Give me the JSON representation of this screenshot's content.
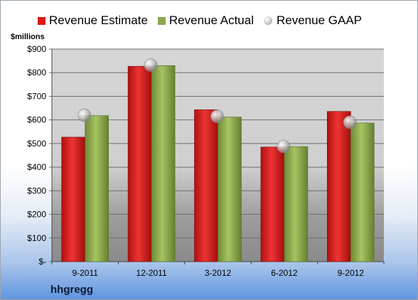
{
  "company": "hhgregg",
  "chart_data": {
    "type": "bar",
    "ylabel": "$millions",
    "categories": [
      "9-2011",
      "12-2011",
      "3-2012",
      "6-2012",
      "9-2012"
    ],
    "series": [
      {
        "name": "Revenue Estimate",
        "values": [
          527,
          827,
          643,
          485,
          636
        ],
        "color": "#d91a1a"
      },
      {
        "name": "Revenue Actual",
        "values": [
          618,
          830,
          612,
          487,
          587
        ],
        "color": "#8aa84a"
      },
      {
        "name": "Revenue GAAP",
        "values": [
          620,
          832,
          615,
          488,
          590
        ],
        "color": "#b0b0b0"
      }
    ],
    "ylim": [
      0,
      900
    ],
    "yticks": [
      0,
      100,
      200,
      300,
      400,
      500,
      600,
      700,
      800,
      900
    ],
    "ytick_labels": [
      "$-",
      "$100",
      "$200",
      "$300",
      "$400",
      "$500",
      "$600",
      "$700",
      "$800",
      "$900"
    ],
    "grid": true,
    "legend_position": "top"
  }
}
